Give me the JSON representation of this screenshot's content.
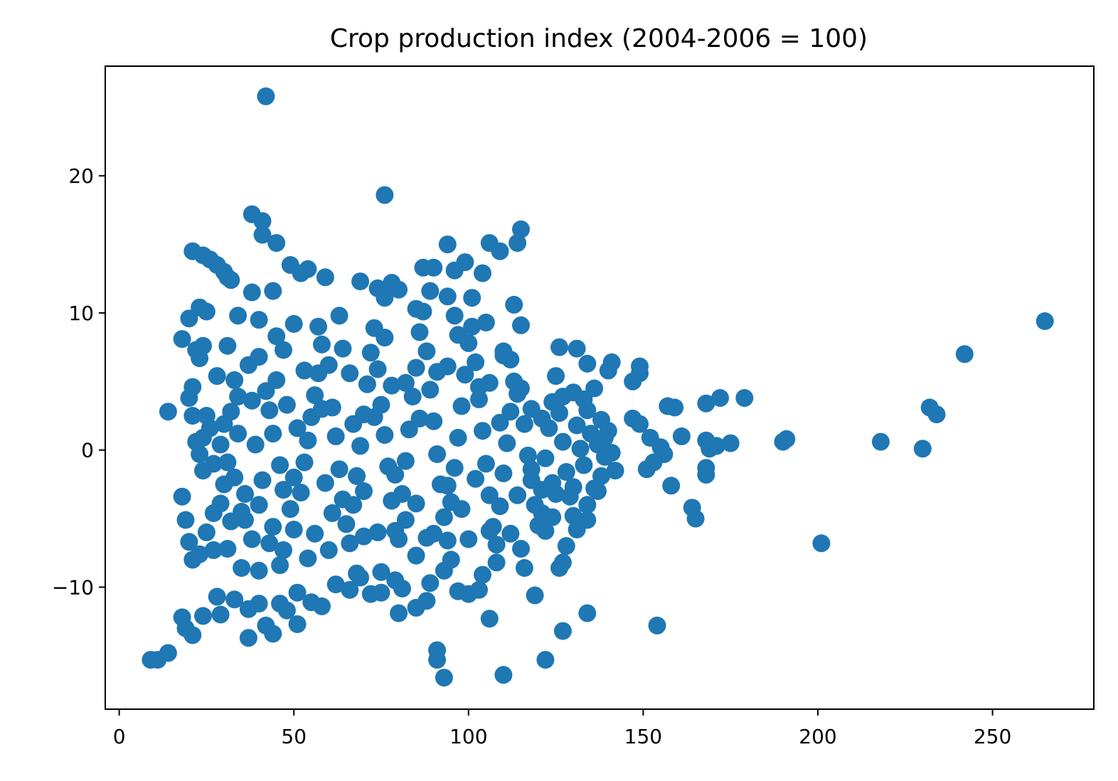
{
  "chart_data": {
    "type": "scatter",
    "title": "Crop production index (2004-2006 = 100)",
    "xlabel": "",
    "ylabel": "",
    "xlim": [
      -4,
      279
    ],
    "ylim": [
      -18.9,
      28
    ],
    "xticks": [
      0,
      50,
      100,
      150,
      200,
      250
    ],
    "xtick_labels": [
      "0",
      "50",
      "100",
      "150",
      "200",
      "250"
    ],
    "yticks": [
      -10,
      0,
      10,
      20
    ],
    "ytick_labels": [
      "−10",
      "0",
      "10",
      "20"
    ],
    "grid": false,
    "legend": "none",
    "marker_color": "#1f77b4",
    "points": [
      [
        42,
        25.8
      ],
      [
        76,
        18.6
      ],
      [
        38,
        17.2
      ],
      [
        41,
        16.7
      ],
      [
        41,
        15.7
      ],
      [
        45,
        15.1
      ],
      [
        115,
        16.1
      ],
      [
        94,
        15.0
      ],
      [
        106,
        15.1
      ],
      [
        109,
        14.5
      ],
      [
        114,
        15.1
      ],
      [
        21,
        14.5
      ],
      [
        24,
        14.2
      ],
      [
        26,
        13.9
      ],
      [
        28,
        13.5
      ],
      [
        30,
        13.0
      ],
      [
        31,
        12.6
      ],
      [
        32,
        12.4
      ],
      [
        49,
        13.5
      ],
      [
        52,
        12.9
      ],
      [
        54,
        13.2
      ],
      [
        59,
        12.6
      ],
      [
        69,
        12.3
      ],
      [
        87,
        13.3
      ],
      [
        90,
        13.3
      ],
      [
        96,
        13.1
      ],
      [
        99,
        13.7
      ],
      [
        104,
        12.9
      ],
      [
        38,
        11.5
      ],
      [
        44,
        11.6
      ],
      [
        74,
        11.8
      ],
      [
        76,
        11.1
      ],
      [
        78,
        12.2
      ],
      [
        80,
        11.7
      ],
      [
        89,
        11.6
      ],
      [
        94,
        11.2
      ],
      [
        101,
        11.1
      ],
      [
        113,
        10.6
      ],
      [
        115,
        9.1
      ],
      [
        23,
        10.4
      ],
      [
        25,
        10.1
      ],
      [
        20,
        9.6
      ],
      [
        34,
        9.8
      ],
      [
        40,
        9.5
      ],
      [
        50,
        9.2
      ],
      [
        57,
        9.0
      ],
      [
        63,
        9.8
      ],
      [
        85,
        10.3
      ],
      [
        96,
        9.8
      ],
      [
        105,
        9.3
      ],
      [
        18,
        8.1
      ],
      [
        22,
        7.3
      ],
      [
        24,
        7.6
      ],
      [
        23,
        6.7
      ],
      [
        31,
        7.6
      ],
      [
        45,
        8.3
      ],
      [
        110,
        7.2
      ],
      [
        112,
        6.6
      ],
      [
        126,
        7.5
      ],
      [
        131,
        7.4
      ],
      [
        134,
        6.3
      ],
      [
        140,
        5.8
      ],
      [
        141,
        6.4
      ],
      [
        147,
        5.0
      ],
      [
        149,
        5.6
      ],
      [
        149,
        6.1
      ],
      [
        20,
        3.8
      ],
      [
        14,
        2.8
      ],
      [
        21,
        2.5
      ],
      [
        21,
        4.6
      ],
      [
        157,
        3.2
      ],
      [
        159,
        3.1
      ],
      [
        168,
        3.4
      ],
      [
        172,
        3.8
      ],
      [
        179,
        3.8
      ],
      [
        147,
        2.3
      ],
      [
        149,
        1.9
      ],
      [
        152,
        0.9
      ],
      [
        155,
        0.2
      ],
      [
        156,
        -0.3
      ],
      [
        161,
        1.0
      ],
      [
        168,
        0.7
      ],
      [
        169,
        0.1
      ],
      [
        171,
        0.3
      ],
      [
        175,
        0.5
      ],
      [
        190,
        0.6
      ],
      [
        191,
        0.8
      ],
      [
        218,
        0.6
      ],
      [
        230,
        0.1
      ],
      [
        232,
        3.1
      ],
      [
        234,
        2.6
      ],
      [
        242,
        7.0
      ],
      [
        265,
        9.4
      ],
      [
        153,
        -0.9
      ],
      [
        151,
        -1.4
      ],
      [
        142,
        -1.5
      ],
      [
        138,
        -1.9
      ],
      [
        137,
        -3.0
      ],
      [
        158,
        -2.6
      ],
      [
        168,
        -1.3
      ],
      [
        168,
        -1.8
      ],
      [
        164,
        -4.2
      ],
      [
        165,
        -5.0
      ],
      [
        201,
        -6.8
      ],
      [
        18,
        -3.4
      ],
      [
        19,
        -5.1
      ],
      [
        20,
        -6.7
      ],
      [
        23,
        -7.6
      ],
      [
        25,
        -6.0
      ],
      [
        27,
        -7.3
      ],
      [
        21,
        -8.0
      ],
      [
        31,
        -7.2
      ],
      [
        35,
        -8.6
      ],
      [
        40,
        -8.8
      ],
      [
        18,
        -12.2
      ],
      [
        19,
        -13.0
      ],
      [
        21,
        -13.5
      ],
      [
        24,
        -12.1
      ],
      [
        29,
        -12.0
      ],
      [
        28,
        -10.7
      ],
      [
        33,
        -10.9
      ],
      [
        37,
        -13.7
      ],
      [
        37,
        -11.6
      ],
      [
        40,
        -11.2
      ],
      [
        42,
        -12.8
      ],
      [
        44,
        -13.4
      ],
      [
        46,
        -11.2
      ],
      [
        48,
        -11.7
      ],
      [
        51,
        -10.4
      ],
      [
        51,
        -12.7
      ],
      [
        55,
        -11.1
      ],
      [
        58,
        -11.4
      ],
      [
        9,
        -15.3
      ],
      [
        11,
        -15.3
      ],
      [
        14,
        -14.8
      ],
      [
        91,
        -14.6
      ],
      [
        91,
        -15.3
      ],
      [
        93,
        -16.6
      ],
      [
        110,
        -16.4
      ],
      [
        122,
        -15.3
      ],
      [
        127,
        -13.2
      ],
      [
        134,
        -11.9
      ],
      [
        154,
        -12.8
      ],
      [
        106,
        -12.3
      ],
      [
        80,
        -11.9
      ],
      [
        85,
        -11.5
      ],
      [
        88,
        -11.0
      ],
      [
        62,
        -9.8
      ],
      [
        66,
        -10.2
      ],
      [
        69,
        -9.3
      ],
      [
        72,
        -10.5
      ],
      [
        75,
        -10.4
      ],
      [
        79,
        -9.5
      ],
      [
        81,
        -10.1
      ],
      [
        89,
        -9.7
      ],
      [
        97,
        -10.3
      ],
      [
        100,
        -10.5
      ],
      [
        103,
        -10.2
      ],
      [
        104,
        -9.1
      ],
      [
        108,
        -8.2
      ],
      [
        115,
        -7.2
      ],
      [
        116,
        -8.6
      ],
      [
        119,
        -10.6
      ],
      [
        122,
        -5.9
      ],
      [
        126,
        -8.6
      ],
      [
        127,
        -8.2
      ],
      [
        128,
        -7.0
      ],
      [
        131,
        -5.8
      ],
      [
        134,
        -5.1
      ],
      [
        134,
        -4.0
      ],
      [
        130,
        -2.7
      ],
      [
        125,
        -3.2
      ],
      [
        124,
        -4.9
      ],
      [
        121,
        -4.6
      ],
      [
        93,
        -8.8
      ],
      [
        95,
        -8.0
      ],
      [
        85,
        -7.7
      ],
      [
        75,
        -8.9
      ],
      [
        68,
        -9.0
      ],
      [
        60,
        -7.3
      ],
      [
        54,
        -7.9
      ],
      [
        47,
        -7.3
      ],
      [
        43,
        -6.8
      ],
      [
        38,
        -6.5
      ],
      [
        46,
        -8.4
      ],
      [
        27,
        -4.6
      ],
      [
        29,
        -3.9
      ],
      [
        30,
        -2.5
      ],
      [
        32,
        -5.2
      ],
      [
        35,
        -4.5
      ],
      [
        24,
        -1.5
      ],
      [
        23,
        -0.3
      ],
      [
        22,
        0.6
      ],
      [
        24,
        0.9
      ],
      [
        26,
        1.6
      ],
      [
        33,
        -2.0
      ],
      [
        36,
        -3.2
      ],
      [
        27,
        -1.0
      ],
      [
        29,
        0.4
      ],
      [
        30,
        1.9
      ],
      [
        32,
        2.8
      ],
      [
        34,
        3.9
      ],
      [
        33,
        5.1
      ],
      [
        37,
        6.2
      ],
      [
        40,
        6.8
      ],
      [
        42,
        4.3
      ],
      [
        43,
        2.9
      ],
      [
        44,
        1.2
      ],
      [
        46,
        -1.1
      ],
      [
        47,
        -2.9
      ],
      [
        49,
        -4.3
      ],
      [
        50,
        -5.8
      ],
      [
        52,
        -3.1
      ],
      [
        53,
        -0.9
      ],
      [
        54,
        0.7
      ],
      [
        55,
        2.4
      ],
      [
        56,
        4.0
      ],
      [
        57,
        5.6
      ],
      [
        58,
        7.7
      ],
      [
        60,
        6.2
      ],
      [
        61,
        3.1
      ],
      [
        62,
        1.0
      ],
      [
        63,
        -1.4
      ],
      [
        64,
        -3.6
      ],
      [
        65,
        -5.4
      ],
      [
        66,
        -6.8
      ],
      [
        67,
        -4.0
      ],
      [
        68,
        -1.9
      ],
      [
        69,
        0.3
      ],
      [
        70,
        2.6
      ],
      [
        71,
        4.8
      ],
      [
        72,
        7.1
      ],
      [
        73,
        8.9
      ],
      [
        74,
        5.9
      ],
      [
        75,
        3.3
      ],
      [
        76,
        1.1
      ],
      [
        77,
        -1.2
      ],
      [
        78,
        -3.7
      ],
      [
        79,
        -5.9
      ],
      [
        80,
        -6.5
      ],
      [
        81,
        -3.2
      ],
      [
        82,
        -0.8
      ],
      [
        83,
        1.5
      ],
      [
        84,
        3.9
      ],
      [
        85,
        6.0
      ],
      [
        86,
        8.6
      ],
      [
        87,
        10.1
      ],
      [
        88,
        7.2
      ],
      [
        89,
        4.4
      ],
      [
        90,
        2.1
      ],
      [
        91,
        -0.3
      ],
      [
        92,
        -2.5
      ],
      [
        93,
        -4.9
      ],
      [
        94,
        -6.6
      ],
      [
        95,
        -3.8
      ],
      [
        96,
        -1.3
      ],
      [
        97,
        0.9
      ],
      [
        98,
        3.2
      ],
      [
        99,
        5.5
      ],
      [
        100,
        7.8
      ],
      [
        101,
        9.0
      ],
      [
        102,
        6.4
      ],
      [
        103,
        3.7
      ],
      [
        104,
        1.4
      ],
      [
        105,
        -1.0
      ],
      [
        106,
        -3.3
      ],
      [
        107,
        -5.6
      ],
      [
        108,
        -6.9
      ],
      [
        109,
        -4.1
      ],
      [
        110,
        -1.7
      ],
      [
        111,
        0.5
      ],
      [
        112,
        2.8
      ],
      [
        113,
        5.0
      ],
      [
        114,
        4.1
      ],
      [
        116,
        1.9
      ],
      [
        117,
        -0.4
      ],
      [
        118,
        -2.2
      ],
      [
        119,
        -4.0
      ],
      [
        120,
        -5.5
      ],
      [
        121,
        -2.9
      ],
      [
        122,
        -0.6
      ],
      [
        123,
        1.6
      ],
      [
        124,
        3.5
      ],
      [
        125,
        5.4
      ],
      [
        126,
        2.7
      ],
      [
        127,
        0.6
      ],
      [
        128,
        -1.6
      ],
      [
        129,
        -3.4
      ],
      [
        130,
        4.2
      ],
      [
        131,
        1.8
      ],
      [
        132,
        0.1
      ],
      [
        133,
        -1.1
      ],
      [
        134,
        2.9
      ],
      [
        135,
        1.2
      ],
      [
        136,
        4.5
      ],
      [
        137,
        0.4
      ],
      [
        138,
        2.2
      ],
      [
        139,
        -0.5
      ],
      [
        140,
        1.4
      ],
      [
        141,
        -0.2
      ],
      [
        39,
        0.4
      ],
      [
        41,
        -2.2
      ],
      [
        45,
        5.1
      ],
      [
        48,
        3.3
      ],
      [
        51,
        1.6
      ],
      [
        59,
        -2.4
      ],
      [
        66,
        5.6
      ],
      [
        70,
        -3.0
      ],
      [
        74,
        -6.0
      ],
      [
        78,
        4.7
      ],
      [
        82,
        -5.1
      ],
      [
        86,
        2.3
      ],
      [
        90,
        -6.1
      ],
      [
        94,
        6.1
      ],
      [
        98,
        -4.3
      ],
      [
        102,
        -2.1
      ],
      [
        106,
        4.9
      ],
      [
        110,
        6.9
      ],
      [
        114,
        -3.3
      ],
      [
        118,
        3.0
      ],
      [
        25,
        2.5
      ],
      [
        28,
        5.4
      ],
      [
        31,
        -0.9
      ],
      [
        34,
        1.2
      ],
      [
        36,
        -5.1
      ],
      [
        38,
        3.6
      ],
      [
        40,
        -4.0
      ],
      [
        44,
        -5.6
      ],
      [
        47,
        7.3
      ],
      [
        50,
        -2.0
      ],
      [
        53,
        5.8
      ],
      [
        56,
        -6.1
      ],
      [
        58,
        3.0
      ],
      [
        61,
        -4.6
      ],
      [
        64,
        7.4
      ],
      [
        67,
        1.9
      ],
      [
        70,
        -6.3
      ],
      [
        73,
        2.4
      ],
      [
        76,
        8.2
      ],
      [
        79,
        -1.8
      ],
      [
        82,
        4.9
      ],
      [
        85,
        -3.9
      ],
      [
        88,
        -6.4
      ],
      [
        91,
        5.7
      ],
      [
        94,
        -2.6
      ],
      [
        97,
        8.4
      ],
      [
        100,
        -6.5
      ],
      [
        103,
        4.6
      ],
      [
        106,
        -5.9
      ],
      [
        109,
        2.0
      ],
      [
        112,
        -6.1
      ],
      [
        115,
        4.5
      ],
      [
        118,
        -1.4
      ],
      [
        121,
        2.3
      ],
      [
        124,
        -2.4
      ],
      [
        127,
        3.9
      ],
      [
        130,
        -4.8
      ],
      [
        133,
        3.7
      ],
      [
        136,
        -2.8
      ],
      [
        139,
        0.9
      ]
    ]
  }
}
